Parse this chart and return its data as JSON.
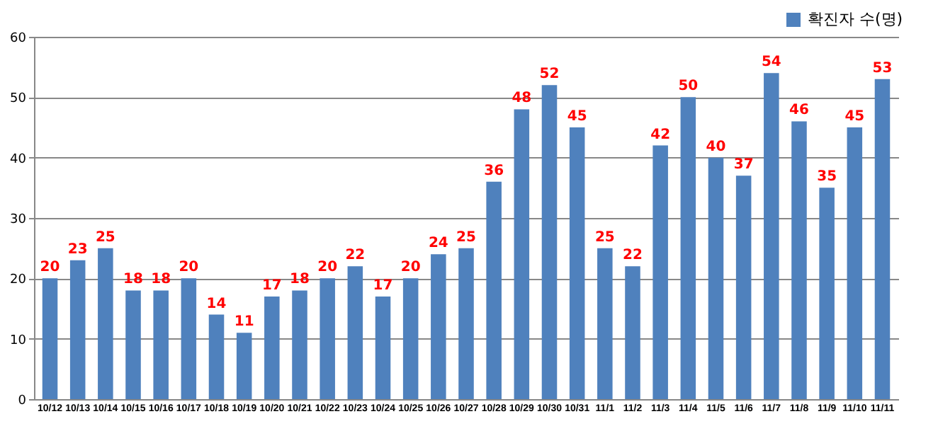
{
  "chart_data": {
    "type": "bar",
    "categories": [
      "10/12",
      "10/13",
      "10/14",
      "10/15",
      "10/16",
      "10/17",
      "10/18",
      "10/19",
      "10/20",
      "10/21",
      "10/22",
      "10/23",
      "10/24",
      "10/25",
      "10/26",
      "10/27",
      "10/28",
      "10/29",
      "10/30",
      "10/31",
      "11/1",
      "11/2",
      "11/3",
      "11/4",
      "11/5",
      "11/6",
      "11/7",
      "11/8",
      "11/9",
      "11/10",
      "11/11"
    ],
    "series": [
      {
        "name": "확진자 수(명)",
        "color": "#4f81bd",
        "values": [
          20,
          23,
          25,
          18,
          18,
          20,
          14,
          11,
          17,
          18,
          20,
          22,
          17,
          20,
          24,
          25,
          36,
          48,
          52,
          45,
          25,
          22,
          42,
          50,
          40,
          37,
          54,
          46,
          35,
          45,
          53
        ]
      }
    ],
    "ylim": [
      0,
      60
    ],
    "yticks": [
      0,
      10,
      20,
      30,
      40,
      50,
      60
    ],
    "grid": "y",
    "legend": "top right",
    "data_labels": true
  }
}
